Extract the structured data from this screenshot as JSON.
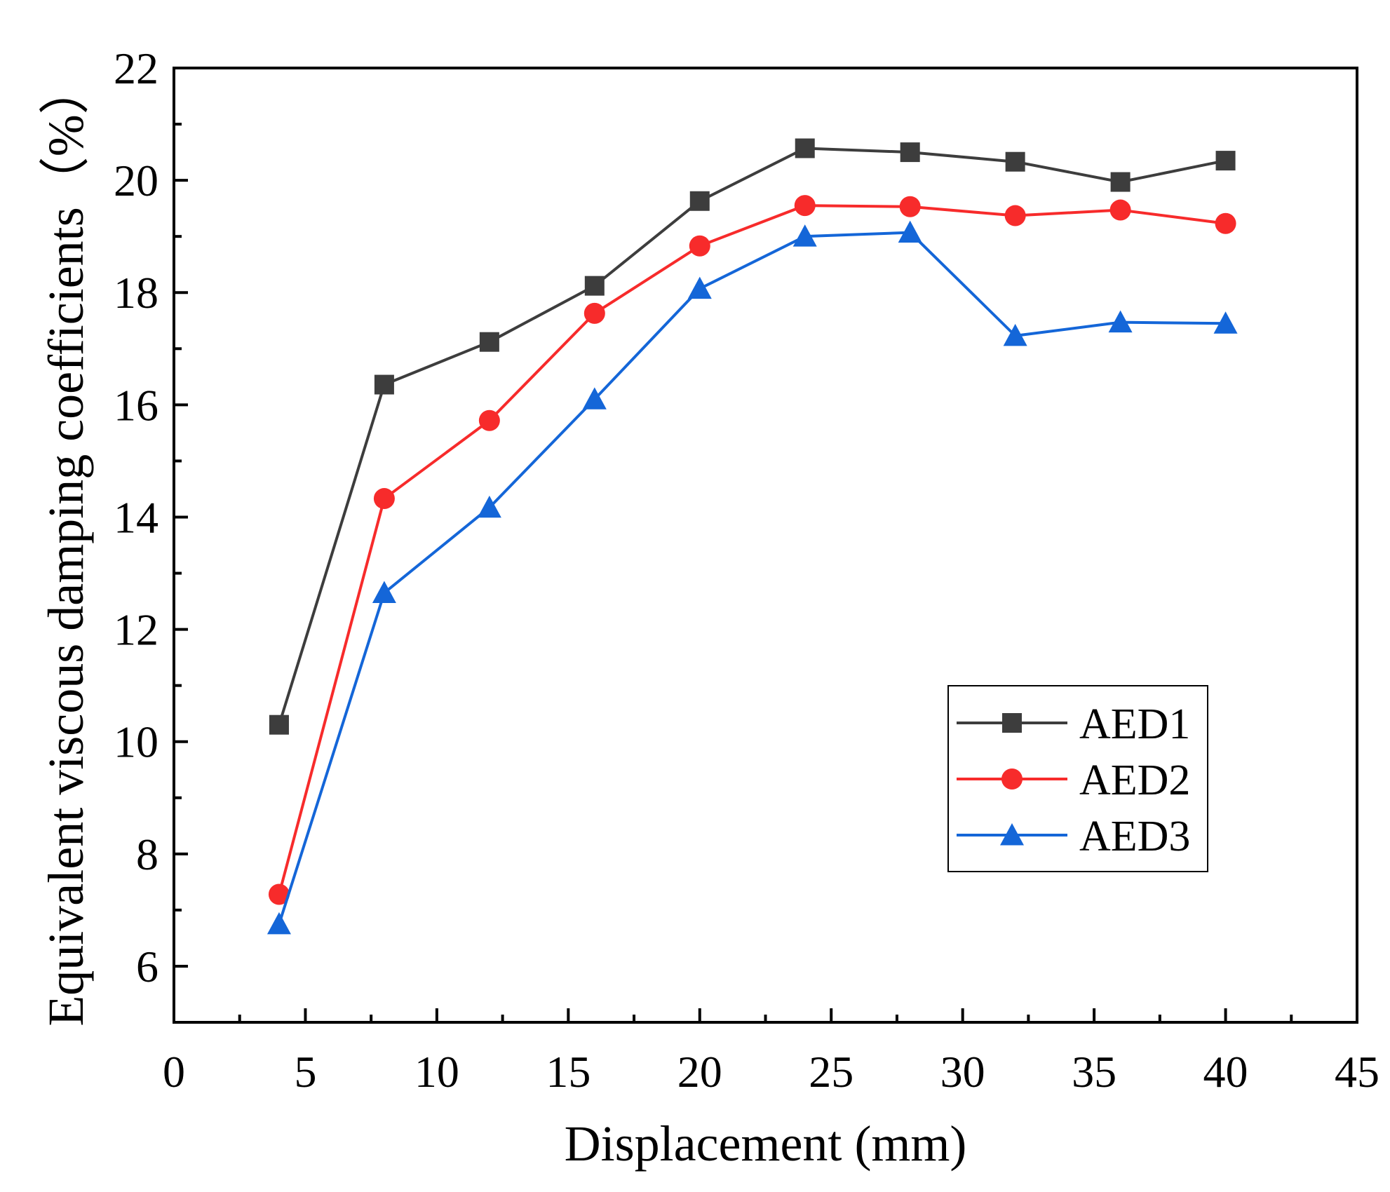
{
  "chart_data": {
    "type": "line",
    "title": "",
    "xlabel": "Displacement (mm)",
    "ylabel": "Equivalent viscous damping coefficients（%）",
    "xlim": [
      0,
      45
    ],
    "ylim": [
      5,
      22
    ],
    "xticks": [
      0,
      5,
      10,
      15,
      20,
      25,
      30,
      35,
      40,
      45
    ],
    "yticks": [
      6,
      8,
      10,
      12,
      14,
      16,
      18,
      20,
      22
    ],
    "grid": false,
    "legend_position": "lower-right",
    "x": [
      4,
      8,
      12,
      16,
      20,
      24,
      28,
      32,
      36,
      40
    ],
    "series": [
      {
        "name": "AED1",
        "color": "#3d3d3d",
        "marker": "square",
        "values": [
          10.3,
          16.36,
          17.12,
          18.12,
          19.63,
          20.57,
          20.5,
          20.33,
          19.97,
          20.35
        ]
      },
      {
        "name": "AED2",
        "color": "#f72b2b",
        "marker": "circle",
        "values": [
          7.28,
          14.33,
          15.72,
          17.63,
          18.83,
          19.55,
          19.53,
          19.37,
          19.47,
          19.23
        ]
      },
      {
        "name": "AED3",
        "color": "#1466d8",
        "marker": "triangle",
        "values": [
          6.75,
          12.65,
          14.17,
          16.1,
          18.07,
          19.0,
          19.07,
          17.23,
          17.47,
          17.45
        ]
      }
    ]
  }
}
